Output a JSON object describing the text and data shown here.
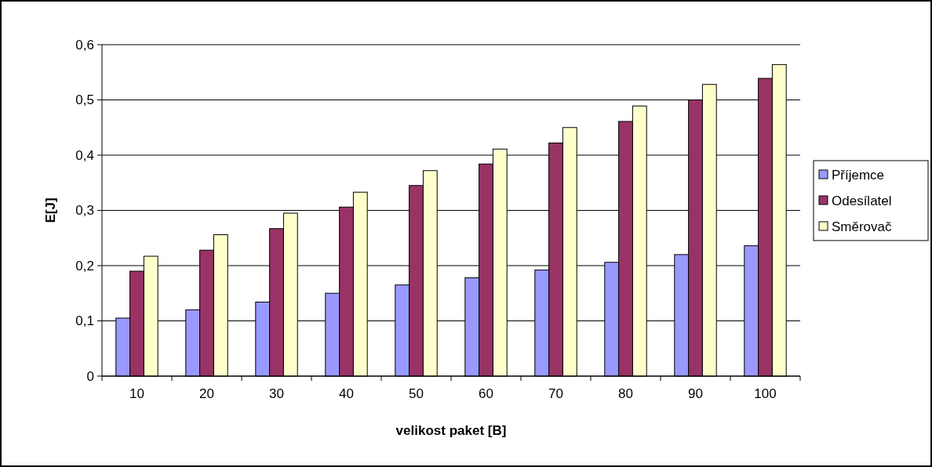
{
  "chart_data": {
    "type": "bar",
    "xlabel": "velikost paket [B]",
    "ylabel": "E[J]",
    "categories": [
      "10",
      "20",
      "30",
      "40",
      "50",
      "60",
      "70",
      "80",
      "90",
      "100"
    ],
    "series": [
      {
        "name": "Příjemce",
        "color": "#9999ff",
        "values": [
          0.105,
          0.12,
          0.134,
          0.15,
          0.165,
          0.178,
          0.192,
          0.206,
          0.22,
          0.236
        ]
      },
      {
        "name": "Odesílatel",
        "color": "#993366",
        "values": [
          0.19,
          0.228,
          0.267,
          0.306,
          0.345,
          0.384,
          0.422,
          0.461,
          0.5,
          0.539
        ]
      },
      {
        "name": "Směrovač",
        "color": "#ffffcc",
        "values": [
          0.217,
          0.256,
          0.295,
          0.333,
          0.372,
          0.411,
          0.45,
          0.489,
          0.528,
          0.564
        ]
      }
    ],
    "ylim": [
      0,
      0.6
    ],
    "yticks": [
      {
        "value": 0,
        "label": "0"
      },
      {
        "value": 0.1,
        "label": "0,1"
      },
      {
        "value": 0.2,
        "label": "0,2"
      },
      {
        "value": 0.3,
        "label": "0,3"
      },
      {
        "value": 0.4,
        "label": "0,4"
      },
      {
        "value": 0.5,
        "label": "0,5"
      },
      {
        "value": 0.6,
        "label": "0,6"
      }
    ],
    "grid": "y",
    "legend": "right"
  }
}
